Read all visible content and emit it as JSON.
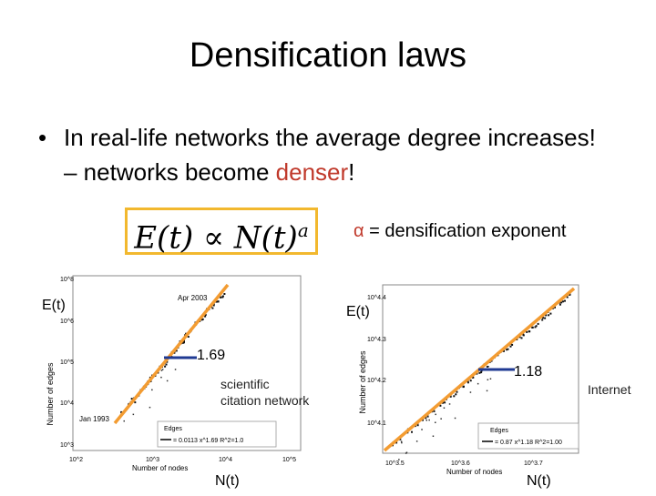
{
  "slide": {
    "title": "Densification laws",
    "bullet_symbol": "•",
    "bullet_text_start": "In real-life networks the average degree increases! – networks become ",
    "bullet_highlight": "denser",
    "bullet_text_end": "!",
    "formula_left": "E(t) ∝ N(t)",
    "formula_exp": "a",
    "alpha_symbol": "α",
    "alpha_note": " = densification exponent"
  },
  "colors": {
    "fit_line": "#f39c32",
    "highlight": "#c0392b",
    "box_border": "#f2b82e",
    "pointer": "#1f3a93"
  },
  "chart_data": [
    {
      "type": "scatter",
      "title": "",
      "ylabel_outer": "E(t)",
      "xlabel_outer": "N(t)",
      "ylabel_inner": "Number of edges",
      "xlabel_inner": "Number of nodes",
      "log_scale": true,
      "annotations": [
        "Apr 2003",
        "Jan 1993"
      ],
      "slope_label": "1.69",
      "caption": "scientific citation network",
      "legend": [
        "Edges",
        "= 0.0113 x^1.69 R^2=1.0"
      ],
      "y_ticks": [
        "10^8",
        "10^6",
        "10^5",
        "10^4",
        "10^3"
      ],
      "x_ticks": [
        "10^2",
        "10^3",
        "10^4",
        "10^5"
      ],
      "exponent": 1.69
    },
    {
      "type": "scatter",
      "title": "",
      "ylabel_outer": "E(t)",
      "xlabel_outer": "N(t)",
      "ylabel_inner": "Number of edges",
      "xlabel_inner": "Number of nodes",
      "log_scale": true,
      "slope_label": "1.18",
      "caption": "Internet",
      "legend": [
        "Edges",
        "= 0.87 x^1.18 R^2=1.00"
      ],
      "y_ticks": [
        "10^4.4",
        "10^4.3",
        "10^4.2",
        "10^4.1"
      ],
      "x_ticks": [
        "10^3.5",
        "10^3.6",
        "10^3.7"
      ],
      "exponent": 1.18
    }
  ]
}
